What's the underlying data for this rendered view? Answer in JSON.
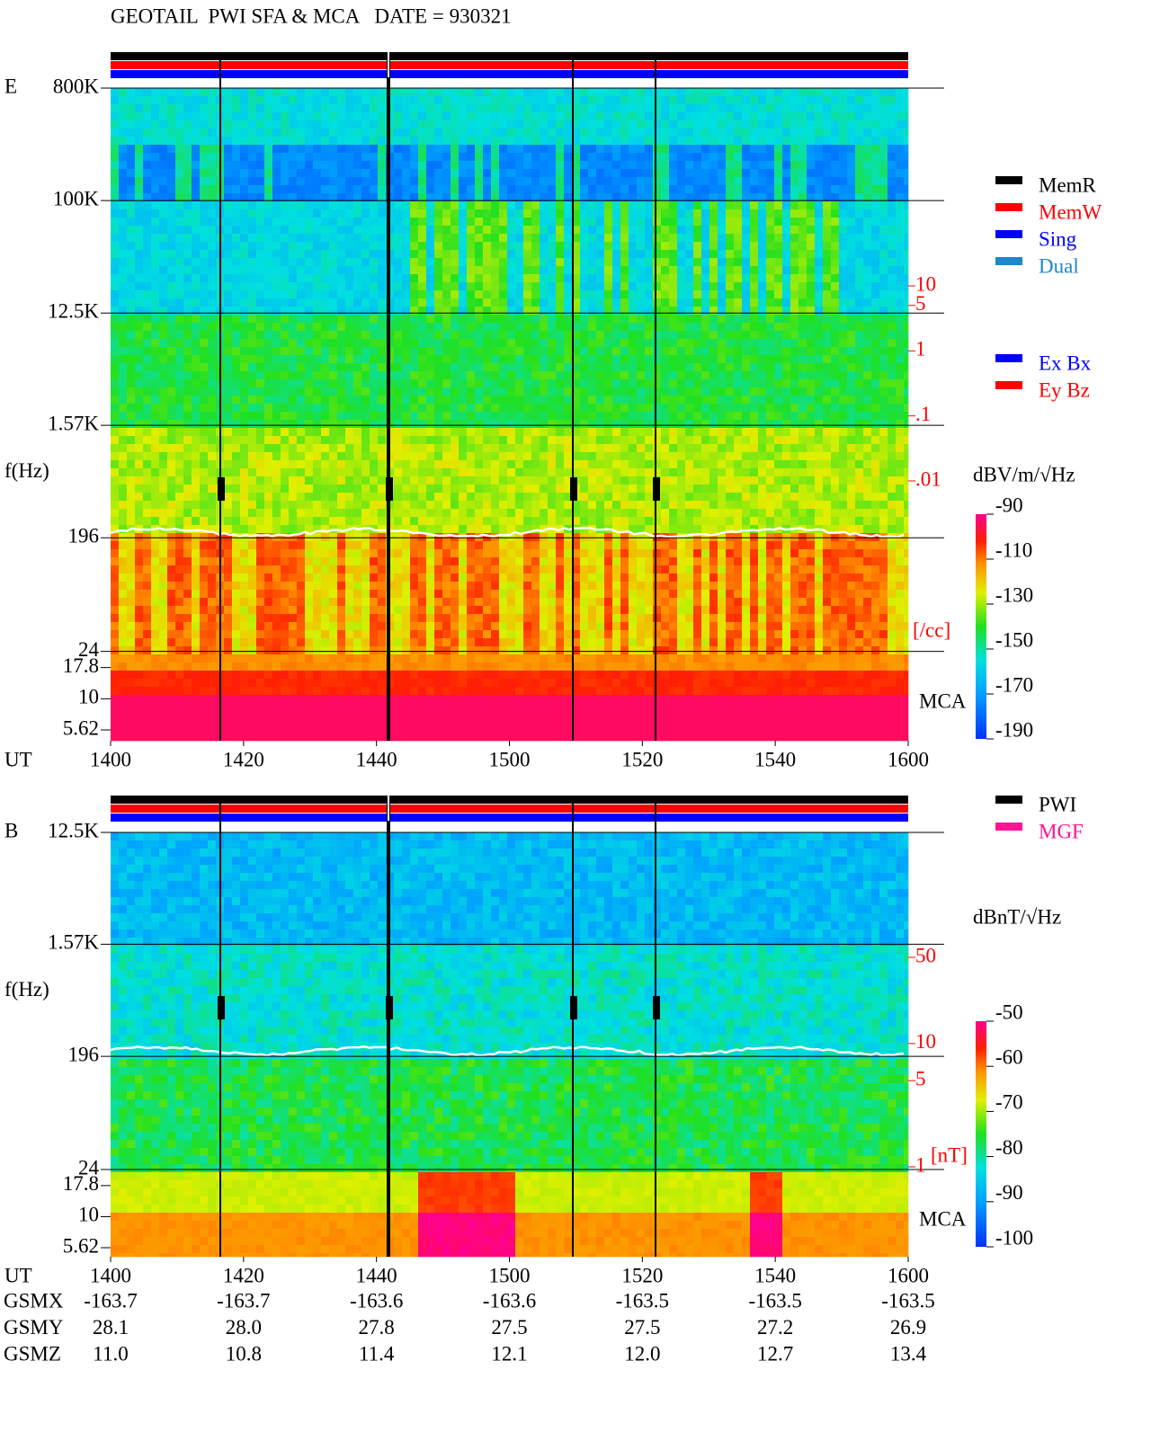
{
  "header": {
    "title": "GEOTAIL  PWI SFA & MCA   DATE = 930321"
  },
  "chart_data": [
    {
      "type": "spectrogram",
      "panel_label": "E",
      "y_label": "f(Hz)",
      "x_label": "UT",
      "log_y": true,
      "ylim": [
        5.62,
        800000
      ],
      "yticks": [
        {
          "value": 800000,
          "label": "800K"
        },
        {
          "value": 100000,
          "label": "100K"
        },
        {
          "value": 12500,
          "label": "12.5K"
        },
        {
          "value": 1570,
          "label": "1.57K"
        },
        196,
        24,
        17.8,
        10,
        5.62
      ],
      "categories": [
        "1400",
        "1420",
        "1440",
        "1500",
        "1520",
        "1540",
        "1600"
      ],
      "y2lim": [
        0.01,
        10
      ],
      "y2ticks": [
        10,
        5,
        1,
        {
          "value": 0.1,
          "label": ".1"
        },
        {
          "value": 0.01,
          "label": ".01"
        }
      ],
      "y2_label": "[/cc]",
      "band_label": "MCA",
      "colorbar": {
        "label": "dBV/m/√Hz",
        "clim": [
          -190,
          -90
        ],
        "cticks": [
          -90,
          -110,
          -130,
          -150,
          -170,
          -190
        ]
      },
      "legend": [
        {
          "name": "MemR",
          "color": "#000000"
        },
        {
          "name": "MemW",
          "color": "#ff0000"
        },
        {
          "name": "Sing",
          "color": "#0000ff"
        },
        {
          "name": "Dual",
          "color": "#1e88c8"
        }
      ],
      "legend2": [
        {
          "name": "Ex Bx",
          "color": "#0000ff"
        },
        {
          "name": "Ey Bz",
          "color": "#ff0000"
        }
      ]
    },
    {
      "type": "spectrogram",
      "panel_label": "B",
      "y_label": "f(Hz)",
      "x_label": "UT",
      "log_y": true,
      "ylim": [
        5.62,
        12500
      ],
      "yticks": [
        {
          "value": 12500,
          "label": "12.5K"
        },
        {
          "value": 1570,
          "label": "1.57K"
        },
        196,
        24,
        17.8,
        10,
        5.62
      ],
      "categories": [
        "1400",
        "1420",
        "1440",
        "1500",
        "1520",
        "1540",
        "1600"
      ],
      "y2lim": [
        1,
        50
      ],
      "y2ticks": [
        50,
        10,
        5,
        1
      ],
      "y2_label": "[nT]",
      "band_label": "MCA",
      "colorbar": {
        "label": "dBnT/√Hz",
        "clim": [
          -100,
          -50
        ],
        "cticks": [
          -50,
          -60,
          -70,
          -80,
          -90,
          -100
        ]
      },
      "legend": [
        {
          "name": "PWI",
          "color": "#000000"
        },
        {
          "name": "MGF",
          "color": "#ff1493"
        }
      ]
    }
  ],
  "positions": {
    "rows": [
      {
        "label": "GSMX",
        "values": [
          "-163.7",
          "-163.7",
          "-163.6",
          "-163.6",
          "-163.5",
          "-163.5",
          "-163.5"
        ]
      },
      {
        "label": "GSMY",
        "values": [
          "28.1",
          "28.0",
          "27.8",
          "27.5",
          "27.5",
          "27.2",
          "26.9"
        ]
      },
      {
        "label": "GSMZ",
        "values": [
          "11.0",
          "10.8",
          "11.4",
          "12.1",
          "12.0",
          "12.7",
          "13.4"
        ]
      }
    ]
  }
}
